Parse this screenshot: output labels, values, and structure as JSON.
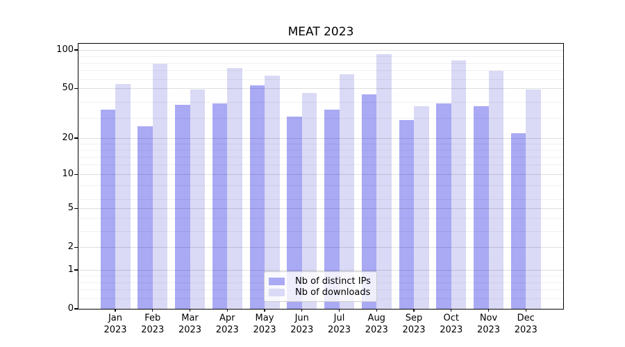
{
  "chart_data": {
    "type": "bar",
    "title": "MEAT 2023",
    "categories": [
      "Jan",
      "Feb",
      "Mar",
      "Apr",
      "May",
      "Jun",
      "Jul",
      "Aug",
      "Sep",
      "Oct",
      "Nov",
      "Dec"
    ],
    "category_year_line": "2023",
    "series": [
      {
        "name": "Nb of distinct IPs",
        "color": "#a9a9f4",
        "values": [
          34,
          25,
          37,
          38,
          53,
          30,
          34,
          45,
          28,
          38,
          36,
          22
        ]
      },
      {
        "name": "Nb of downloads",
        "color": "#dadaf6",
        "values": [
          54,
          78,
          49,
          72,
          63,
          46,
          65,
          93,
          36,
          83,
          69,
          49
        ]
      }
    ],
    "xlabel": "",
    "ylabel": "",
    "yscale": "log1p",
    "ylim": [
      0,
      112
    ],
    "yticks_labeled": [
      0,
      1,
      2,
      5,
      10,
      20,
      50,
      100
    ],
    "yticks_minor": [
      0.2,
      0.4,
      0.6,
      0.8,
      3,
      4,
      6,
      8,
      12,
      14,
      16,
      18,
      29,
      39,
      59,
      69,
      79,
      89
    ],
    "grid": true,
    "legend_position": "lower center"
  }
}
